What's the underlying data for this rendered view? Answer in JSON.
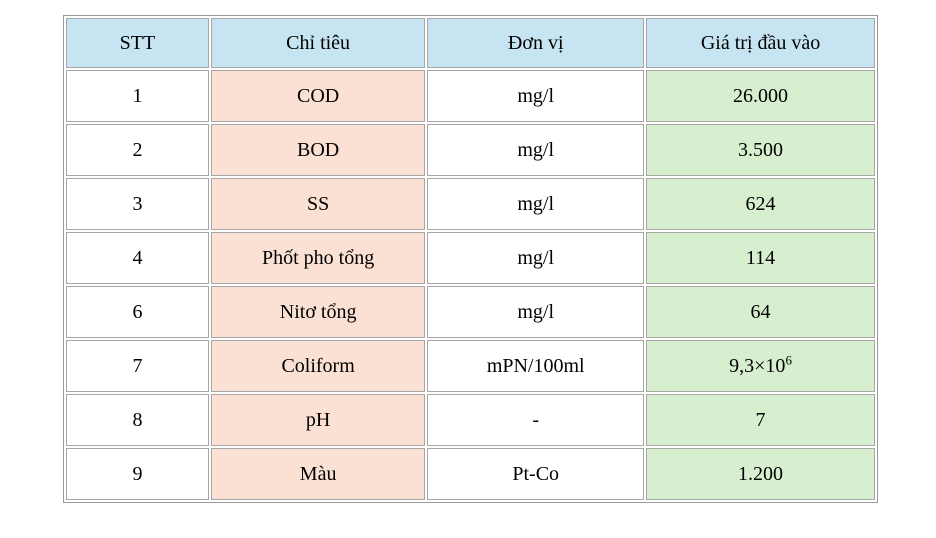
{
  "table": {
    "headers": [
      "STT",
      "Chỉ tiêu",
      "Đơn vị",
      "Giá trị đầu vào"
    ],
    "rows": [
      {
        "stt": "1",
        "chi_tieu": "COD",
        "don_vi": "mg/l",
        "gia_tri": "26.000"
      },
      {
        "stt": "2",
        "chi_tieu": "BOD",
        "don_vi": "mg/l",
        "gia_tri": "3.500"
      },
      {
        "stt": "3",
        "chi_tieu": "SS",
        "don_vi": "mg/l",
        "gia_tri": "624"
      },
      {
        "stt": "4",
        "chi_tieu": "Phốt pho tổng",
        "don_vi": "mg/l",
        "gia_tri": "114"
      },
      {
        "stt": "6",
        "chi_tieu": "Nitơ tổng",
        "don_vi": "mg/l",
        "gia_tri": "64"
      },
      {
        "stt": "7",
        "chi_tieu": "Coliform",
        "don_vi": "mPN/100ml",
        "gia_tri": "9,3×10",
        "gia_tri_sup": "6"
      },
      {
        "stt": "8",
        "chi_tieu": "pH",
        "don_vi": "-",
        "gia_tri": "7"
      },
      {
        "stt": "9",
        "chi_tieu": "Màu",
        "don_vi": "Pt-Co",
        "gia_tri": "1.200"
      }
    ],
    "colors": {
      "header_bg": "#c6e4f1",
      "chi_tieu_bg": "#fbe1d3",
      "gia_tri_bg": "#d7efcf",
      "border_outer": "#9a9a9a",
      "border_cell": "#a6a6a6"
    }
  }
}
